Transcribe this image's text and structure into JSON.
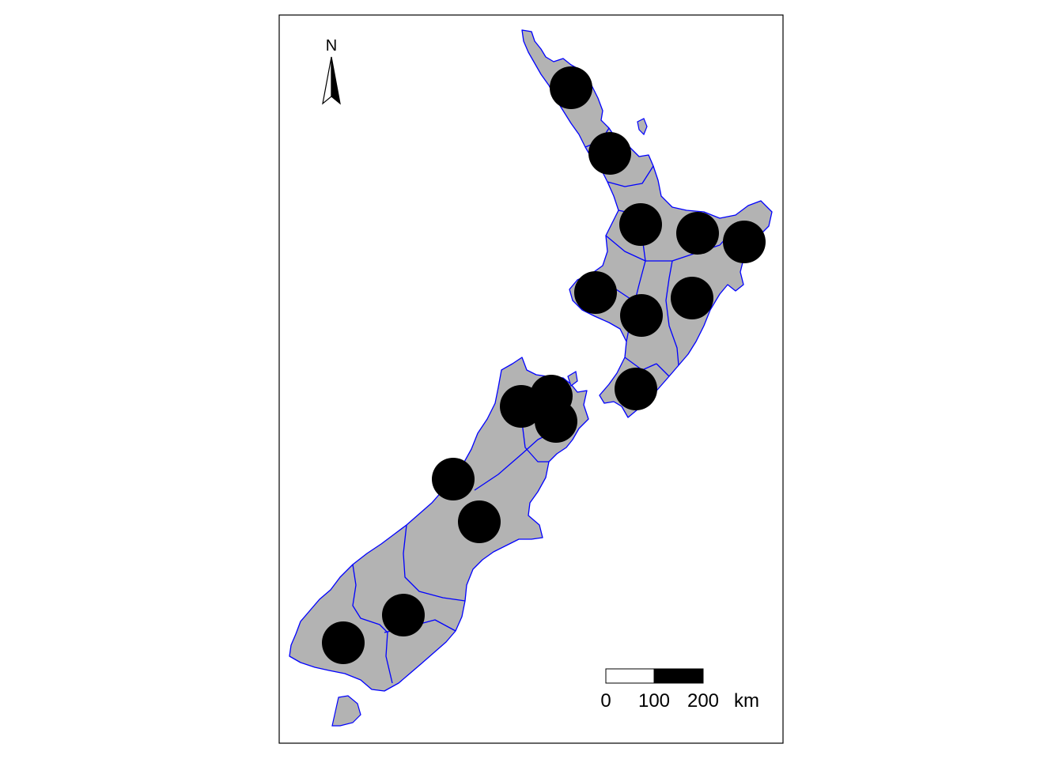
{
  "map": {
    "north_arrow_label": "N",
    "scale_bar": {
      "tick_labels": [
        "0",
        "100",
        "200"
      ],
      "unit": "km"
    },
    "colors": {
      "land_fill": "#b3b3b3",
      "region_border": "#0000ff",
      "marker": "#000000",
      "frame": "#000000",
      "background": "#ffffff"
    },
    "marker_count": 16,
    "icons": [
      "north-arrow-icon",
      "scale-bar"
    ]
  }
}
